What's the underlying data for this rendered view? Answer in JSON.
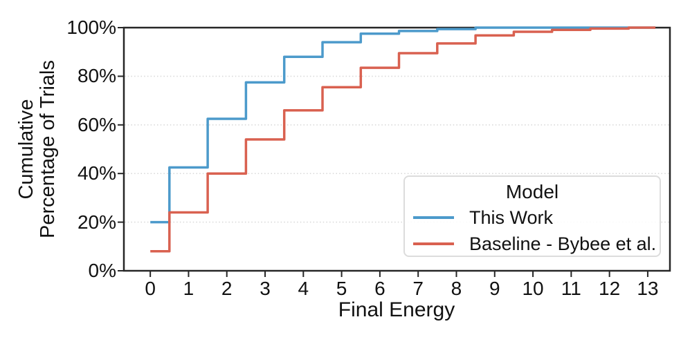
{
  "figure": {
    "xlabel": "Final Energy",
    "ylabel_line1": "Cumulative",
    "ylabel_line2": "Percentage of Trials",
    "x_tick_labels": [
      "0",
      "1",
      "2",
      "3",
      "4",
      "5",
      "6",
      "7",
      "8",
      "9",
      "10",
      "11",
      "12",
      "13"
    ],
    "y_tick_labels": [
      "0%",
      "20%",
      "40%",
      "60%",
      "80%",
      "100%"
    ]
  },
  "legend": {
    "title": "Model",
    "entries": [
      {
        "label": "This Work",
        "color": "#4C9ACB"
      },
      {
        "label": "Baseline - Bybee et al.",
        "color": "#D96150"
      }
    ]
  },
  "colors": {
    "this_work_line": "#4C9ACB",
    "baseline_line": "#D96150",
    "spine": "#262626",
    "gridline": "#d9d9d9",
    "text": "#111111"
  },
  "chart_data": {
    "type": "line",
    "subtype": "step-ecdf",
    "title": "",
    "xlabel": "Final Energy",
    "ylabel": "Cumulative Percentage of Trials",
    "xlim": [
      -0.69,
      13.58
    ],
    "ylim": [
      0,
      100
    ],
    "x_tick_values": [
      0,
      1,
      2,
      3,
      4,
      5,
      6,
      7,
      8,
      9,
      10,
      11,
      12,
      13
    ],
    "y_tick_values": [
      0,
      20,
      40,
      60,
      80,
      100
    ],
    "y_grid_values": [
      20,
      40,
      60,
      80
    ],
    "grid": "horizontal dotted",
    "legend_position": "lower right",
    "y_unit": "percent",
    "series": [
      {
        "name": "This Work",
        "color": "#4C9ACB",
        "x_end": 13.2,
        "steps": [
          [
            0,
            20
          ],
          [
            0.5,
            42.5
          ],
          [
            1.5,
            62.5
          ],
          [
            2.5,
            77.5
          ],
          [
            3.5,
            88
          ],
          [
            4.5,
            94
          ],
          [
            5.5,
            97.5
          ],
          [
            6.5,
            98.6
          ],
          [
            7.5,
            99.4
          ],
          [
            8.5,
            100
          ]
        ]
      },
      {
        "name": "Baseline - Bybee et al.",
        "color": "#D96150",
        "x_end": 13.2,
        "steps": [
          [
            0,
            8
          ],
          [
            0.5,
            24
          ],
          [
            1.5,
            40
          ],
          [
            2.5,
            54
          ],
          [
            3.5,
            66
          ],
          [
            4.5,
            75.5
          ],
          [
            5.5,
            83.5
          ],
          [
            6.5,
            89.5
          ],
          [
            7.5,
            93.5
          ],
          [
            8.5,
            96.8
          ],
          [
            9.5,
            98.3
          ],
          [
            10.5,
            99.1
          ],
          [
            11.5,
            99.6
          ],
          [
            12.5,
            100
          ]
        ]
      }
    ]
  }
}
